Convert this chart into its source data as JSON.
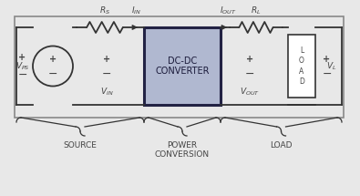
{
  "bg_color": "#e8e8e8",
  "circuit_bg": "#f0f0f0",
  "converter_fill": "#b0b8d0",
  "converter_border": "#222244",
  "wire_color": "#333333",
  "text_color": "#444444",
  "brace_color": "#333333",
  "figsize": [
    3.95,
    2.15
  ],
  "dpi": 100,
  "converter_text": "DC-DC\nCONVERTER",
  "source_label": "SOURCE",
  "power_label": "POWER\nCONVERSION",
  "load_label": "LOAD"
}
